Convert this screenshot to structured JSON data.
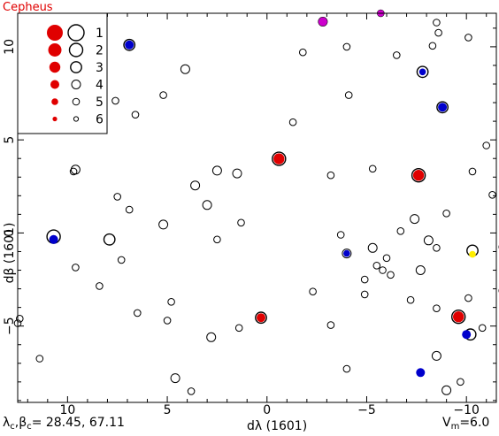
{
  "chart_data": {
    "type": "scatter",
    "title": "Cepheus",
    "xlabel": "dλ (1601)",
    "ylabel": "dβ (1601)",
    "xlim": [
      12.5,
      -11.5
    ],
    "ylim": [
      -9.1,
      11.8
    ],
    "x_ticks": [
      10,
      5,
      0,
      -5,
      -10
    ],
    "x_tick_labels": [
      "10",
      "5",
      "0",
      "−5",
      "−10"
    ],
    "y_ticks": [
      -5,
      0,
      5,
      10
    ],
    "y_tick_labels": [
      "−5",
      "0",
      "5",
      "10"
    ],
    "legend": {
      "position": "top-left",
      "magnitudes": [
        "1",
        "2",
        "3",
        "4",
        "5",
        "6"
      ],
      "sizes": [
        9,
        7.5,
        6.2,
        5,
        3.8,
        2.6
      ]
    },
    "footer": {
      "center_prefix": "λ",
      "center_sub1": "c",
      "center_mid": ",β",
      "center_sub2": "c",
      "center_value": "= 28.45, 67.11",
      "vm_prefix": "V",
      "vm_sub": "m",
      "vm_value": "=6.0"
    },
    "colors": {
      "red": "#e00000",
      "blue": "#0000cc",
      "magenta": "#cc00cc",
      "yellow": "#ffee00"
    },
    "stars": [
      {
        "x": 10.7,
        "y": -0.2,
        "mag": 2
      },
      {
        "x": 10.7,
        "y": -0.35,
        "mag": 4,
        "fill": "blue"
      },
      {
        "x": 6.9,
        "y": 10.1,
        "mag": 3
      },
      {
        "x": 6.9,
        "y": 10.1,
        "mag": 4,
        "fill": "blue"
      },
      {
        "x": -0.6,
        "y": 3.98,
        "mag": 2
      },
      {
        "x": -0.6,
        "y": 3.98,
        "mag": 3,
        "fill": "red"
      },
      {
        "x": -7.6,
        "y": 3.1,
        "mag": 2
      },
      {
        "x": -7.6,
        "y": 3.1,
        "mag": 3,
        "fill": "red"
      },
      {
        "x": 0.3,
        "y": -4.55,
        "mag": 3
      },
      {
        "x": 0.3,
        "y": -4.55,
        "mag": 4,
        "fill": "red"
      },
      {
        "x": -9.6,
        "y": -4.5,
        "mag": 2
      },
      {
        "x": -9.6,
        "y": -4.5,
        "mag": 3,
        "fill": "red"
      },
      {
        "x": -2.8,
        "y": 11.35,
        "mag": 4
      },
      {
        "x": -2.8,
        "y": 11.35,
        "mag": 4,
        "fill": "magenta"
      },
      {
        "x": -5.7,
        "y": 11.8,
        "mag": 5
      },
      {
        "x": -5.7,
        "y": 11.8,
        "mag": 5,
        "fill": "magenta"
      },
      {
        "x": -7.8,
        "y": 8.65,
        "mag": 3
      },
      {
        "x": -7.8,
        "y": 8.65,
        "mag": 5,
        "fill": "blue"
      },
      {
        "x": -8.8,
        "y": 6.75,
        "mag": 3
      },
      {
        "x": -8.8,
        "y": 6.75,
        "mag": 4,
        "fill": "blue"
      },
      {
        "x": -4.0,
        "y": -1.1,
        "mag": 4
      },
      {
        "x": -4.0,
        "y": -1.1,
        "mag": 5,
        "fill": "blue"
      },
      {
        "x": -10.2,
        "y": -5.45,
        "mag": 3
      },
      {
        "x": -10.0,
        "y": -5.45,
        "mag": 4,
        "fill": "blue"
      },
      {
        "x": -7.7,
        "y": -7.5,
        "mag": 4,
        "fill": "blue"
      },
      {
        "x": -10.3,
        "y": -0.95,
        "mag": 3
      },
      {
        "x": -10.3,
        "y": -1.15,
        "mag": 5,
        "fill": "yellow"
      },
      {
        "x": 7.9,
        "y": -0.35,
        "mag": 3
      },
      {
        "x": 4.1,
        "y": 8.8,
        "mag": 4
      },
      {
        "x": 5.2,
        "y": 7.4,
        "mag": 5
      },
      {
        "x": 7.6,
        "y": 7.1,
        "mag": 5
      },
      {
        "x": 6.6,
        "y": 6.35,
        "mag": 5
      },
      {
        "x": -1.3,
        "y": 5.95,
        "mag": 5
      },
      {
        "x": 9.6,
        "y": 3.4,
        "mag": 4
      },
      {
        "x": 9.7,
        "y": 3.3,
        "mag": 5
      },
      {
        "x": 3.6,
        "y": 2.55,
        "mag": 4
      },
      {
        "x": 2.5,
        "y": 3.35,
        "mag": 4
      },
      {
        "x": 1.5,
        "y": 3.2,
        "mag": 4
      },
      {
        "x": 7.5,
        "y": 1.95,
        "mag": 5
      },
      {
        "x": 6.9,
        "y": 1.25,
        "mag": 5
      },
      {
        "x": 3.0,
        "y": 1.5,
        "mag": 4
      },
      {
        "x": 5.2,
        "y": 0.45,
        "mag": 4
      },
      {
        "x": 1.3,
        "y": 0.55,
        "mag": 5
      },
      {
        "x": 2.5,
        "y": -0.35,
        "mag": 5
      },
      {
        "x": 7.3,
        "y": -1.45,
        "mag": 5
      },
      {
        "x": 9.6,
        "y": -1.85,
        "mag": 5
      },
      {
        "x": 8.4,
        "y": -2.85,
        "mag": 5
      },
      {
        "x": 6.5,
        "y": -4.3,
        "mag": 5
      },
      {
        "x": 4.8,
        "y": -3.7,
        "mag": 5
      },
      {
        "x": 5.0,
        "y": -4.7,
        "mag": 5
      },
      {
        "x": 2.8,
        "y": -5.6,
        "mag": 4
      },
      {
        "x": 1.4,
        "y": -5.1,
        "mag": 5
      },
      {
        "x": 4.6,
        "y": -7.8,
        "mag": 4
      },
      {
        "x": 3.8,
        "y": -8.5,
        "mag": 5
      },
      {
        "x": 12.4,
        "y": -4.6,
        "mag": 5
      },
      {
        "x": 12.5,
        "y": -4.85,
        "mag": 5
      },
      {
        "x": 11.4,
        "y": -6.75,
        "mag": 5
      },
      {
        "x": -1.8,
        "y": 9.7,
        "mag": 5
      },
      {
        "x": -4.0,
        "y": 10.0,
        "mag": 5
      },
      {
        "x": -4.1,
        "y": 7.4,
        "mag": 5
      },
      {
        "x": -3.2,
        "y": 3.1,
        "mag": 5
      },
      {
        "x": -5.3,
        "y": 3.45,
        "mag": 5
      },
      {
        "x": -6.5,
        "y": 9.55,
        "mag": 5
      },
      {
        "x": -8.5,
        "y": 11.3,
        "mag": 5
      },
      {
        "x": -8.6,
        "y": 10.75,
        "mag": 5
      },
      {
        "x": -8.3,
        "y": 10.05,
        "mag": 5
      },
      {
        "x": -10.1,
        "y": 10.5,
        "mag": 5
      },
      {
        "x": -11.0,
        "y": 4.7,
        "mag": 5
      },
      {
        "x": -10.3,
        "y": 3.3,
        "mag": 5
      },
      {
        "x": -11.3,
        "y": 2.05,
        "mag": 5
      },
      {
        "x": -9.0,
        "y": 1.05,
        "mag": 5
      },
      {
        "x": -7.4,
        "y": 0.75,
        "mag": 4
      },
      {
        "x": -6.7,
        "y": 0.1,
        "mag": 5
      },
      {
        "x": -8.1,
        "y": -0.4,
        "mag": 4
      },
      {
        "x": -8.5,
        "y": -0.8,
        "mag": 5
      },
      {
        "x": -3.7,
        "y": -0.1,
        "mag": 5
      },
      {
        "x": -5.3,
        "y": -0.8,
        "mag": 4
      },
      {
        "x": -5.5,
        "y": -1.75,
        "mag": 5
      },
      {
        "x": -6.0,
        "y": -1.35,
        "mag": 5
      },
      {
        "x": -5.8,
        "y": -2.0,
        "mag": 5
      },
      {
        "x": -6.2,
        "y": -2.25,
        "mag": 5
      },
      {
        "x": -4.9,
        "y": -2.5,
        "mag": 5
      },
      {
        "x": -4.9,
        "y": -3.3,
        "mag": 5
      },
      {
        "x": -7.7,
        "y": -2.0,
        "mag": 4
      },
      {
        "x": -2.3,
        "y": -3.15,
        "mag": 5
      },
      {
        "x": -7.2,
        "y": -3.6,
        "mag": 5
      },
      {
        "x": -8.5,
        "y": -4.05,
        "mag": 5
      },
      {
        "x": -10.1,
        "y": -3.5,
        "mag": 5
      },
      {
        "x": -11.8,
        "y": -3.1,
        "mag": 5
      },
      {
        "x": -11.8,
        "y": -0.75,
        "mag": 5
      },
      {
        "x": -10.8,
        "y": -5.1,
        "mag": 5
      },
      {
        "x": -3.2,
        "y": -4.95,
        "mag": 5
      },
      {
        "x": -8.5,
        "y": -6.6,
        "mag": 4
      },
      {
        "x": -4.0,
        "y": -7.3,
        "mag": 5
      },
      {
        "x": -9.7,
        "y": -8.0,
        "mag": 5
      },
      {
        "x": -9.0,
        "y": -8.45,
        "mag": 4
      }
    ]
  }
}
